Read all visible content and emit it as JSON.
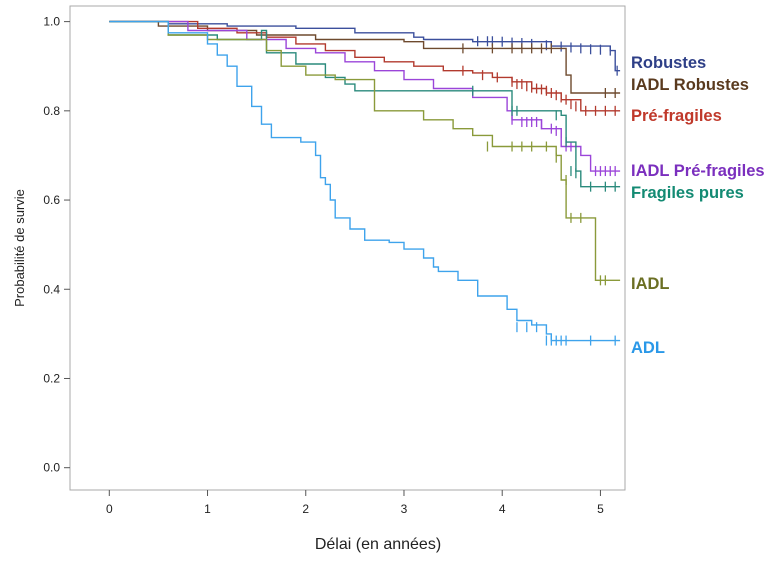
{
  "chart_data": {
    "type": "line",
    "xlabel": "Délai (en années)",
    "ylabel": "Probabilité de survie",
    "xlim": [
      -0.4,
      5.25
    ],
    "ylim": [
      -0.05,
      1.035
    ],
    "xticks": [
      0,
      1,
      2,
      3,
      4,
      5
    ],
    "yticks": [
      0.0,
      0.2,
      0.4,
      0.6,
      0.8,
      1.0
    ],
    "ytick_labels": [
      "0.0",
      "0.2",
      "0.4",
      "0.6",
      "0.8",
      "1.0"
    ],
    "grid": false,
    "legend": "right-of-curves",
    "series": [
      {
        "name": "Robustes",
        "color": "#3b4f9c",
        "label_color": "#2e3f87",
        "points": [
          [
            0,
            1.0
          ],
          [
            0.6,
            0.995
          ],
          [
            1.2,
            0.99
          ],
          [
            1.9,
            0.985
          ],
          [
            2.5,
            0.975
          ],
          [
            3.1,
            0.965
          ],
          [
            3.2,
            0.96
          ],
          [
            3.7,
            0.955
          ],
          [
            4.5,
            0.945
          ],
          [
            5.1,
            0.935
          ],
          [
            5.15,
            0.89
          ],
          [
            5.2,
            0.89
          ]
        ],
        "censored": [
          [
            3.75,
            0.956
          ],
          [
            3.85,
            0.956
          ],
          [
            3.9,
            0.956
          ],
          [
            4.0,
            0.955
          ],
          [
            4.1,
            0.953
          ],
          [
            4.2,
            0.952
          ],
          [
            4.3,
            0.95
          ],
          [
            4.45,
            0.947
          ],
          [
            4.6,
            0.944
          ],
          [
            4.7,
            0.942
          ],
          [
            4.8,
            0.94
          ],
          [
            4.9,
            0.938
          ],
          [
            5.0,
            0.937
          ],
          [
            5.1,
            0.935
          ],
          [
            5.17,
            0.89
          ]
        ]
      },
      {
        "name": "IADL Robustes",
        "color": "#6e4a2e",
        "label_color": "#5a3a1e",
        "points": [
          [
            0,
            1.0
          ],
          [
            0.5,
            0.99
          ],
          [
            1.0,
            0.98
          ],
          [
            1.5,
            0.97
          ],
          [
            2.1,
            0.96
          ],
          [
            3.0,
            0.955
          ],
          [
            3.2,
            0.94
          ],
          [
            4.6,
            0.94
          ],
          [
            4.65,
            0.88
          ],
          [
            4.7,
            0.84
          ],
          [
            5.2,
            0.84
          ]
        ],
        "censored": [
          [
            3.6,
            0.94
          ],
          [
            3.9,
            0.94
          ],
          [
            4.1,
            0.94
          ],
          [
            4.2,
            0.94
          ],
          [
            4.3,
            0.94
          ],
          [
            4.4,
            0.94
          ],
          [
            4.5,
            0.94
          ],
          [
            5.05,
            0.84
          ],
          [
            5.15,
            0.84
          ]
        ]
      },
      {
        "name": "Pré-fragiles",
        "color": "#b23a2e",
        "label_color": "#c0392b",
        "points": [
          [
            0,
            1.0
          ],
          [
            0.9,
            0.985
          ],
          [
            1.3,
            0.975
          ],
          [
            1.6,
            0.965
          ],
          [
            1.9,
            0.95
          ],
          [
            2.2,
            0.935
          ],
          [
            2.5,
            0.92
          ],
          [
            2.8,
            0.91
          ],
          [
            3.1,
            0.9
          ],
          [
            3.4,
            0.89
          ],
          [
            3.7,
            0.885
          ],
          [
            3.9,
            0.875
          ],
          [
            4.1,
            0.865
          ],
          [
            4.3,
            0.85
          ],
          [
            4.45,
            0.84
          ],
          [
            4.6,
            0.825
          ],
          [
            4.8,
            0.8
          ],
          [
            5.2,
            0.8
          ]
        ],
        "censored": [
          [
            3.6,
            0.89
          ],
          [
            3.8,
            0.88
          ],
          [
            3.95,
            0.875
          ],
          [
            4.1,
            0.865
          ],
          [
            4.15,
            0.86
          ],
          [
            4.2,
            0.86
          ],
          [
            4.25,
            0.855
          ],
          [
            4.3,
            0.852
          ],
          [
            4.35,
            0.85
          ],
          [
            4.4,
            0.848
          ],
          [
            4.45,
            0.845
          ],
          [
            4.5,
            0.84
          ],
          [
            4.55,
            0.835
          ],
          [
            4.6,
            0.83
          ],
          [
            4.65,
            0.825
          ],
          [
            4.7,
            0.815
          ],
          [
            4.75,
            0.81
          ],
          [
            4.85,
            0.8
          ],
          [
            4.95,
            0.8
          ],
          [
            5.05,
            0.8
          ],
          [
            5.15,
            0.8
          ]
        ]
      },
      {
        "name": "IADL Pré-fragiles",
        "color": "#9b45d9",
        "label_color": "#7b2fbe",
        "points": [
          [
            0,
            1.0
          ],
          [
            0.8,
            0.98
          ],
          [
            1.4,
            0.96
          ],
          [
            1.8,
            0.94
          ],
          [
            2.1,
            0.93
          ],
          [
            2.4,
            0.91
          ],
          [
            2.7,
            0.89
          ],
          [
            3.0,
            0.87
          ],
          [
            3.3,
            0.85
          ],
          [
            3.7,
            0.83
          ],
          [
            4.05,
            0.8
          ],
          [
            4.1,
            0.78
          ],
          [
            4.4,
            0.76
          ],
          [
            4.6,
            0.72
          ],
          [
            4.8,
            0.7
          ],
          [
            4.9,
            0.665
          ],
          [
            5.2,
            0.665
          ]
        ],
        "censored": [
          [
            4.1,
            0.78
          ],
          [
            4.2,
            0.775
          ],
          [
            4.25,
            0.775
          ],
          [
            4.3,
            0.775
          ],
          [
            4.35,
            0.775
          ],
          [
            4.4,
            0.77
          ],
          [
            4.5,
            0.76
          ],
          [
            4.55,
            0.755
          ],
          [
            4.6,
            0.75
          ],
          [
            4.65,
            0.72
          ],
          [
            4.7,
            0.72
          ],
          [
            4.95,
            0.665
          ],
          [
            5.0,
            0.665
          ],
          [
            5.05,
            0.665
          ],
          [
            5.1,
            0.665
          ],
          [
            5.15,
            0.665
          ]
        ]
      },
      {
        "name": "Fragiles pures",
        "color": "#2a8a7c",
        "label_color": "#138a73",
        "points": [
          [
            0,
            1.0
          ],
          [
            0.6,
            0.97
          ],
          [
            1.1,
            0.96
          ],
          [
            1.5,
            0.96
          ],
          [
            1.55,
            0.98
          ],
          [
            1.6,
            0.98
          ],
          [
            1.6,
            0.955
          ],
          [
            1.6,
            0.93
          ],
          [
            1.9,
            0.905
          ],
          [
            2.2,
            0.875
          ],
          [
            2.4,
            0.86
          ],
          [
            2.5,
            0.845
          ],
          [
            3.1,
            0.845
          ],
          [
            3.7,
            0.845
          ],
          [
            4.1,
            0.845
          ],
          [
            4.1,
            0.8
          ],
          [
            4.6,
            0.79
          ],
          [
            4.65,
            0.73
          ],
          [
            4.75,
            0.665
          ],
          [
            4.8,
            0.63
          ],
          [
            5.2,
            0.63
          ]
        ],
        "censored": [
          [
            3.7,
            0.845
          ],
          [
            4.1,
            0.8
          ],
          [
            4.15,
            0.8
          ],
          [
            4.55,
            0.79
          ],
          [
            4.65,
            0.73
          ],
          [
            4.7,
            0.665
          ],
          [
            4.75,
            0.66
          ],
          [
            4.9,
            0.63
          ],
          [
            5.05,
            0.63
          ],
          [
            5.15,
            0.63
          ]
        ]
      },
      {
        "name": "IADL",
        "color": "#8a9a3a",
        "label_color": "#6b6f23",
        "points": [
          [
            0,
            1.0
          ],
          [
            0.6,
            0.97
          ],
          [
            1.0,
            0.96
          ],
          [
            1.6,
            0.935
          ],
          [
            1.75,
            0.9
          ],
          [
            2.0,
            0.88
          ],
          [
            2.3,
            0.87
          ],
          [
            2.7,
            0.8
          ],
          [
            3.2,
            0.78
          ],
          [
            3.5,
            0.76
          ],
          [
            3.7,
            0.745
          ],
          [
            3.9,
            0.72
          ],
          [
            4.5,
            0.72
          ],
          [
            4.55,
            0.7
          ],
          [
            4.6,
            0.645
          ],
          [
            4.65,
            0.56
          ],
          [
            4.9,
            0.56
          ],
          [
            4.95,
            0.42
          ],
          [
            5.2,
            0.42
          ]
        ],
        "censored": [
          [
            3.85,
            0.72
          ],
          [
            4.1,
            0.72
          ],
          [
            4.2,
            0.72
          ],
          [
            4.3,
            0.72
          ],
          [
            4.45,
            0.72
          ],
          [
            4.55,
            0.695
          ],
          [
            4.65,
            0.645
          ],
          [
            4.7,
            0.56
          ],
          [
            4.8,
            0.56
          ],
          [
            5.0,
            0.42
          ],
          [
            5.05,
            0.42
          ]
        ]
      },
      {
        "name": "ADL",
        "color": "#3ea3ec",
        "label_color": "#2a98e8",
        "points": [
          [
            0,
            1.0
          ],
          [
            0.6,
            0.975
          ],
          [
            1.0,
            0.95
          ],
          [
            1.1,
            0.925
          ],
          [
            1.2,
            0.9
          ],
          [
            1.3,
            0.855
          ],
          [
            1.45,
            0.81
          ],
          [
            1.55,
            0.77
          ],
          [
            1.65,
            0.74
          ],
          [
            1.95,
            0.73
          ],
          [
            2.1,
            0.7
          ],
          [
            2.15,
            0.65
          ],
          [
            2.2,
            0.635
          ],
          [
            2.25,
            0.6
          ],
          [
            2.3,
            0.56
          ],
          [
            2.45,
            0.535
          ],
          [
            2.6,
            0.51
          ],
          [
            2.85,
            0.505
          ],
          [
            3.0,
            0.49
          ],
          [
            3.2,
            0.47
          ],
          [
            3.3,
            0.45
          ],
          [
            3.35,
            0.44
          ],
          [
            3.55,
            0.42
          ],
          [
            3.75,
            0.385
          ],
          [
            4.05,
            0.355
          ],
          [
            4.15,
            0.33
          ],
          [
            4.3,
            0.32
          ],
          [
            4.45,
            0.3
          ],
          [
            4.5,
            0.285
          ],
          [
            5.2,
            0.285
          ]
        ],
        "censored": [
          [
            4.15,
            0.315
          ],
          [
            4.25,
            0.315
          ],
          [
            4.35,
            0.315
          ],
          [
            4.45,
            0.285
          ],
          [
            4.5,
            0.285
          ],
          [
            4.55,
            0.285
          ],
          [
            4.6,
            0.285
          ],
          [
            4.65,
            0.285
          ],
          [
            4.9,
            0.285
          ],
          [
            5.15,
            0.285
          ]
        ]
      }
    ]
  }
}
